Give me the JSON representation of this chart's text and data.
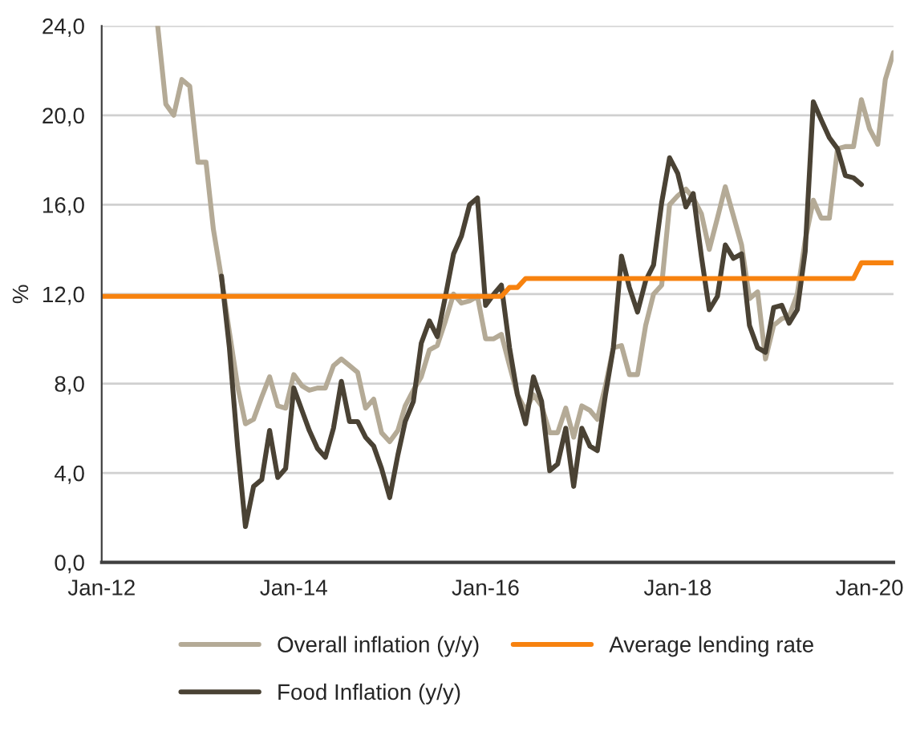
{
  "chart_data": {
    "type": "line",
    "ylabel": "%",
    "x": [
      "2012-01",
      "2012-02",
      "2012-03",
      "2012-04",
      "2012-05",
      "2012-06",
      "2012-07",
      "2012-08",
      "2012-09",
      "2012-10",
      "2012-11",
      "2012-12",
      "2013-01",
      "2013-02",
      "2013-03",
      "2013-04",
      "2013-05",
      "2013-06",
      "2013-07",
      "2013-08",
      "2013-09",
      "2013-10",
      "2013-11",
      "2013-12",
      "2014-01",
      "2014-02",
      "2014-03",
      "2014-04",
      "2014-05",
      "2014-06",
      "2014-07",
      "2014-08",
      "2014-09",
      "2014-10",
      "2014-11",
      "2014-12",
      "2015-01",
      "2015-02",
      "2015-03",
      "2015-04",
      "2015-05",
      "2015-06",
      "2015-07",
      "2015-08",
      "2015-09",
      "2015-10",
      "2015-11",
      "2015-12",
      "2016-01",
      "2016-02",
      "2016-03",
      "2016-04",
      "2016-05",
      "2016-06",
      "2016-07",
      "2016-08",
      "2016-09",
      "2016-10",
      "2016-11",
      "2016-12",
      "2017-01",
      "2017-02",
      "2017-03",
      "2017-04",
      "2017-05",
      "2017-06",
      "2017-07",
      "2017-08",
      "2017-09",
      "2017-10",
      "2017-11",
      "2017-12",
      "2018-01",
      "2018-02",
      "2018-03",
      "2018-04",
      "2018-05",
      "2018-06",
      "2018-07",
      "2018-08",
      "2018-09",
      "2018-10",
      "2018-11",
      "2018-12",
      "2019-01",
      "2019-02",
      "2019-03",
      "2019-04",
      "2019-05",
      "2019-06",
      "2019-07",
      "2019-08",
      "2019-09",
      "2019-10",
      "2019-11",
      "2019-12",
      "2020-01",
      "2020-02",
      "2020-03",
      "2020-04"
    ],
    "series": [
      {
        "name": "Overall inflation (y/y)",
        "color": "#b4aa96",
        "values": [
          null,
          null,
          null,
          null,
          null,
          null,
          null,
          24.0,
          20.5,
          20.0,
          21.6,
          21.3,
          17.9,
          17.9,
          14.9,
          12.7,
          10.3,
          7.9,
          6.2,
          6.4,
          7.4,
          8.3,
          7.0,
          6.9,
          8.4,
          7.9,
          7.7,
          7.8,
          7.8,
          8.8,
          9.1,
          8.8,
          8.5,
          6.9,
          7.3,
          5.8,
          5.4,
          5.9,
          7.0,
          7.7,
          8.3,
          9.5,
          9.7,
          10.8,
          12.0,
          11.6,
          11.7,
          11.9,
          10.0,
          10.0,
          10.2,
          8.8,
          7.5,
          6.8,
          7.5,
          7.0,
          5.8,
          5.8,
          6.9,
          5.6,
          7.0,
          6.8,
          6.4,
          7.9,
          9.6,
          9.7,
          8.4,
          8.4,
          10.6,
          12.0,
          12.4,
          16.0,
          16.4,
          16.7,
          16.3,
          15.6,
          14.0,
          15.4,
          16.8,
          15.5,
          14.2,
          11.8,
          12.1,
          9.1,
          10.6,
          10.9,
          11.0,
          12.0,
          14.4,
          16.2,
          15.4,
          15.4,
          18.5,
          18.6,
          18.6,
          20.7,
          19.4,
          18.7,
          21.6,
          22.8
        ]
      },
      {
        "name": "Food Inflation (y/y)",
        "color": "#4a4234",
        "values": [
          null,
          null,
          null,
          null,
          null,
          null,
          null,
          null,
          null,
          null,
          null,
          null,
          null,
          null,
          null,
          12.8,
          9.6,
          5.2,
          1.6,
          3.4,
          3.7,
          5.9,
          3.8,
          4.2,
          7.8,
          6.8,
          5.9,
          5.1,
          4.7,
          6.0,
          8.1,
          6.3,
          6.3,
          5.6,
          5.2,
          4.2,
          2.9,
          4.8,
          6.3,
          7.2,
          9.8,
          10.8,
          10.1,
          11.9,
          13.8,
          14.6,
          16.0,
          16.3,
          11.5,
          12.0,
          12.4,
          9.6,
          7.5,
          6.2,
          8.3,
          7.2,
          4.1,
          4.4,
          6.0,
          3.4,
          6.0,
          5.2,
          5.0,
          7.5,
          9.6,
          13.7,
          12.3,
          11.2,
          12.6,
          13.3,
          16.1,
          18.1,
          17.4,
          15.9,
          16.5,
          13.7,
          11.3,
          11.9,
          14.2,
          13.6,
          13.8,
          10.6,
          9.6,
          9.4,
          11.4,
          11.5,
          10.7,
          11.3,
          13.9,
          20.6,
          19.8,
          19.0,
          18.5,
          17.3,
          17.2,
          16.9,
          null,
          null,
          null,
          null
        ]
      },
      {
        "name": "Average lending rate",
        "color": "#f7820f",
        "values": [
          11.9,
          11.9,
          11.9,
          11.9,
          11.9,
          11.9,
          11.9,
          11.9,
          11.9,
          11.9,
          11.9,
          11.9,
          11.9,
          11.9,
          11.9,
          11.9,
          11.9,
          11.9,
          11.9,
          11.9,
          11.9,
          11.9,
          11.9,
          11.9,
          11.9,
          11.9,
          11.9,
          11.9,
          11.9,
          11.9,
          11.9,
          11.9,
          11.9,
          11.9,
          11.9,
          11.9,
          11.9,
          11.9,
          11.9,
          11.9,
          11.9,
          11.9,
          11.9,
          11.9,
          11.9,
          11.9,
          11.9,
          11.9,
          11.9,
          11.9,
          11.9,
          12.3,
          12.3,
          12.7,
          12.7,
          12.7,
          12.7,
          12.7,
          12.7,
          12.7,
          12.7,
          12.7,
          12.7,
          12.7,
          12.7,
          12.7,
          12.7,
          12.7,
          12.7,
          12.7,
          12.7,
          12.7,
          12.7,
          12.7,
          12.7,
          12.7,
          12.7,
          12.7,
          12.7,
          12.7,
          12.7,
          12.7,
          12.7,
          12.7,
          12.7,
          12.7,
          12.7,
          12.7,
          12.7,
          12.7,
          12.7,
          12.7,
          12.7,
          12.7,
          12.7,
          13.4,
          13.4,
          13.4,
          13.4,
          13.4
        ]
      }
    ],
    "xlim": [
      "2012-01",
      "2020-04"
    ],
    "xticks": [
      {
        "value": "2012-01",
        "label": "Jan-12"
      },
      {
        "value": "2014-01",
        "label": "Jan-14"
      },
      {
        "value": "2016-01",
        "label": "Jan-16"
      },
      {
        "value": "2018-01",
        "label": "Jan-18"
      },
      {
        "value": "2020-01",
        "label": "Jan-20"
      }
    ],
    "ylim": [
      0,
      24
    ],
    "yticks": [
      {
        "value": 0,
        "label": "0,0"
      },
      {
        "value": 4,
        "label": "4,0"
      },
      {
        "value": 8,
        "label": "8,0"
      },
      {
        "value": 12,
        "label": "12,0"
      },
      {
        "value": 16,
        "label": "16,0"
      },
      {
        "value": 20,
        "label": "20,0"
      },
      {
        "value": 24,
        "label": "24,0"
      }
    ],
    "grid": "y",
    "legend": "bottom",
    "marker": "none",
    "line_style": "solid"
  }
}
